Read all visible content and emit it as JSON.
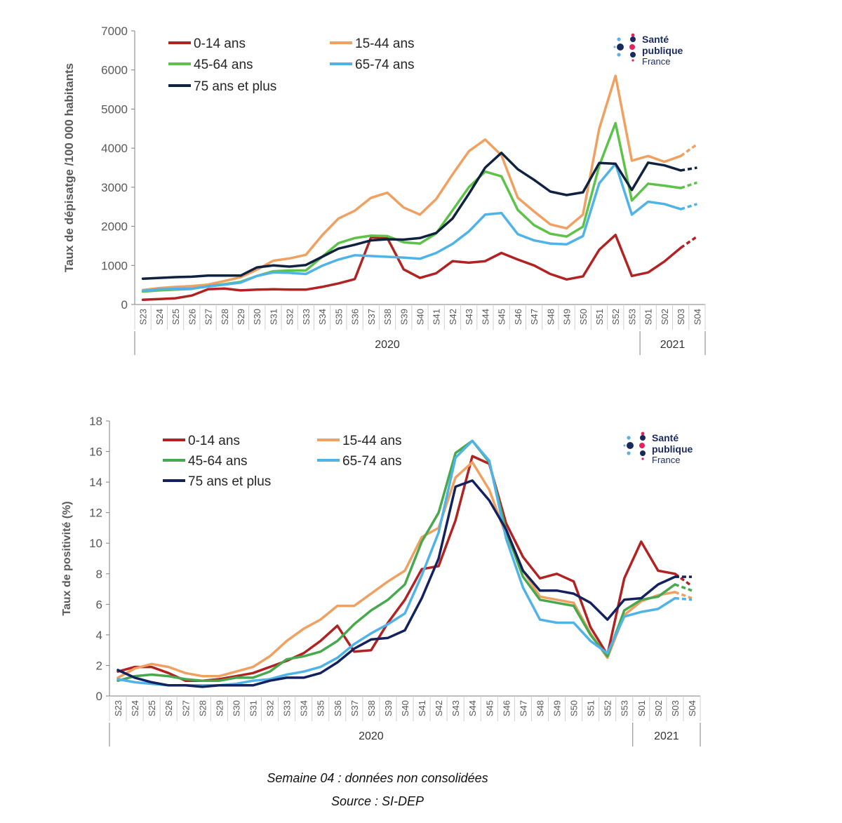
{
  "chart_data": [
    {
      "type": "line",
      "ylabel": "Taux de dépisatge /100 000 habitants",
      "ylim": [
        0,
        7000
      ],
      "yticks": [
        0,
        1000,
        2000,
        3000,
        4000,
        5000,
        6000,
        7000
      ],
      "categories": [
        "S23",
        "S24",
        "S25",
        "S26",
        "S27",
        "S28",
        "S29",
        "S30",
        "S31",
        "S32",
        "S33",
        "S34",
        "S35",
        "S36",
        "S37",
        "S38",
        "S39",
        "S40",
        "S41",
        "S42",
        "S43",
        "S44",
        "S45",
        "S46",
        "S47",
        "S48",
        "S49",
        "S50",
        "S51",
        "S52",
        "S53",
        "S01",
        "S02",
        "S03",
        "S04"
      ],
      "year_groups": [
        {
          "label": "2020",
          "from": 0,
          "to": 30
        },
        {
          "label": "2021",
          "from": 31,
          "to": 34
        }
      ],
      "dashed_from_index": 33,
      "legend": "top-left",
      "series": [
        {
          "name": "0-14 ans",
          "color": "#b22222",
          "values": [
            120,
            140,
            160,
            230,
            390,
            410,
            360,
            380,
            390,
            380,
            380,
            450,
            540,
            650,
            1720,
            1700,
            900,
            680,
            800,
            1110,
            1070,
            1110,
            1320,
            1150,
            1000,
            780,
            640,
            720,
            1400,
            1780,
            730,
            820,
            1100,
            1450,
            1740
          ]
        },
        {
          "name": "15-44 ans",
          "color": "#f0a060",
          "values": [
            370,
            420,
            450,
            470,
            510,
            600,
            700,
            890,
            1120,
            1180,
            1270,
            1770,
            2200,
            2400,
            2730,
            2860,
            2480,
            2300,
            2700,
            3330,
            3920,
            4220,
            3820,
            2730,
            2380,
            2050,
            1950,
            2300,
            4500,
            5850,
            3680,
            3800,
            3650,
            3800,
            4100
          ]
        },
        {
          "name": "45-64 ans",
          "color": "#5ec24a",
          "values": [
            330,
            360,
            380,
            400,
            470,
            520,
            580,
            730,
            850,
            870,
            870,
            1220,
            1570,
            1700,
            1760,
            1750,
            1590,
            1560,
            1820,
            2410,
            3000,
            3400,
            3280,
            2420,
            2030,
            1810,
            1740,
            1990,
            3550,
            4640,
            2660,
            3090,
            3040,
            2980,
            3120
          ]
        },
        {
          "name": "65-74 ans",
          "color": "#4fb3e8",
          "values": [
            350,
            390,
            400,
            410,
            460,
            510,
            560,
            730,
            820,
            810,
            780,
            990,
            1150,
            1260,
            1240,
            1220,
            1200,
            1170,
            1320,
            1550,
            1870,
            2300,
            2340,
            1800,
            1640,
            1560,
            1540,
            1750,
            3100,
            3600,
            2300,
            2630,
            2570,
            2440,
            2570
          ]
        },
        {
          "name": "75 ans et plus",
          "color": "#0f2240",
          "values": [
            660,
            680,
            700,
            710,
            740,
            740,
            740,
            950,
            1000,
            970,
            1010,
            1220,
            1430,
            1530,
            1640,
            1670,
            1660,
            1700,
            1830,
            2200,
            2830,
            3500,
            3880,
            3460,
            3190,
            2890,
            2800,
            2870,
            3620,
            3600,
            2930,
            3630,
            3560,
            3430,
            3500
          ]
        }
      ]
    },
    {
      "type": "line",
      "ylabel": "Taux de positivité  (%)",
      "ylim": [
        0,
        18
      ],
      "yticks": [
        0,
        2,
        4,
        6,
        8,
        10,
        12,
        14,
        16,
        18
      ],
      "categories": [
        "S23",
        "S24",
        "S25",
        "S26",
        "S27",
        "S28",
        "S29",
        "S30",
        "S31",
        "S32",
        "S33",
        "S34",
        "S35",
        "S36",
        "S37",
        "S38",
        "S39",
        "S40",
        "S41",
        "S42",
        "S43",
        "S44",
        "S45",
        "S46",
        "S47",
        "S48",
        "S49",
        "S50",
        "S51",
        "S52",
        "S53",
        "S01",
        "S02",
        "S03",
        "S04"
      ],
      "year_groups": [
        {
          "label": "2020",
          "from": 0,
          "to": 30
        },
        {
          "label": "2021",
          "from": 31,
          "to": 34
        }
      ],
      "dashed_from_index": 33,
      "legend": "top-left",
      "series": [
        {
          "name": "0-14 ans",
          "color": "#b22222",
          "values": [
            1.6,
            1.9,
            1.9,
            1.5,
            1.0,
            1.0,
            1.1,
            1.3,
            1.5,
            1.9,
            2.3,
            2.8,
            3.6,
            4.6,
            2.9,
            3.0,
            4.8,
            6.3,
            8.3,
            8.5,
            11.5,
            15.7,
            15.2,
            11.3,
            9.1,
            7.7,
            8.0,
            7.5,
            4.5,
            2.7,
            7.7,
            10.1,
            8.2,
            8.0,
            7.2
          ]
        },
        {
          "name": "15-44 ans",
          "color": "#f0a060",
          "values": [
            1.2,
            1.8,
            2.1,
            1.9,
            1.5,
            1.3,
            1.3,
            1.6,
            1.9,
            2.6,
            3.6,
            4.4,
            5.0,
            5.9,
            5.9,
            6.7,
            7.5,
            8.2,
            10.4,
            11.0,
            14.3,
            15.3,
            13.5,
            10.5,
            8.2,
            6.5,
            6.3,
            6.1,
            4.1,
            2.5,
            5.3,
            6.2,
            6.6,
            6.8,
            6.4
          ]
        },
        {
          "name": "45-64 ans",
          "color": "#48a84e",
          "values": [
            1.0,
            1.3,
            1.4,
            1.3,
            1.1,
            1.0,
            1.0,
            1.2,
            1.2,
            1.6,
            2.4,
            2.6,
            2.9,
            3.6,
            4.7,
            5.6,
            6.3,
            7.3,
            10.1,
            12.0,
            15.9,
            16.7,
            15.3,
            10.8,
            7.8,
            6.3,
            6.1,
            5.9,
            4.0,
            2.6,
            5.6,
            6.3,
            6.5,
            7.3,
            6.9
          ]
        },
        {
          "name": "65-74 ans",
          "color": "#4fb3e8",
          "values": [
            1.1,
            0.9,
            0.8,
            0.7,
            0.7,
            0.7,
            0.7,
            0.8,
            1.0,
            1.1,
            1.4,
            1.6,
            1.9,
            2.5,
            3.4,
            4.1,
            4.7,
            5.4,
            7.9,
            10.7,
            15.6,
            16.7,
            15.4,
            10.3,
            7.1,
            5.0,
            4.8,
            4.8,
            3.6,
            2.8,
            5.2,
            5.5,
            5.7,
            6.4,
            6.3
          ]
        },
        {
          "name": "75 ans et plus",
          "color": "#13225e",
          "values": [
            1.7,
            1.2,
            0.9,
            0.7,
            0.7,
            0.6,
            0.7,
            0.7,
            0.7,
            1.0,
            1.2,
            1.2,
            1.5,
            2.2,
            3.1,
            3.7,
            3.8,
            4.3,
            6.4,
            9.0,
            13.7,
            14.1,
            12.8,
            10.9,
            8.2,
            6.9,
            6.9,
            6.7,
            6.1,
            5.0,
            6.3,
            6.4,
            7.3,
            7.8,
            7.8
          ]
        }
      ]
    }
  ],
  "logo": {
    "line1": "Santé",
    "line2": "publique",
    "line3": "France"
  },
  "footer": {
    "note": "Semaine 04 : données non consolidées",
    "source": "Source : SI-DEP"
  },
  "colors": {
    "axis": "#7f7f7f",
    "tick_text": "#595959",
    "logo_text": "#1a2a5e",
    "logo_pink": "#e0245e",
    "logo_light": "#5db2e0"
  }
}
